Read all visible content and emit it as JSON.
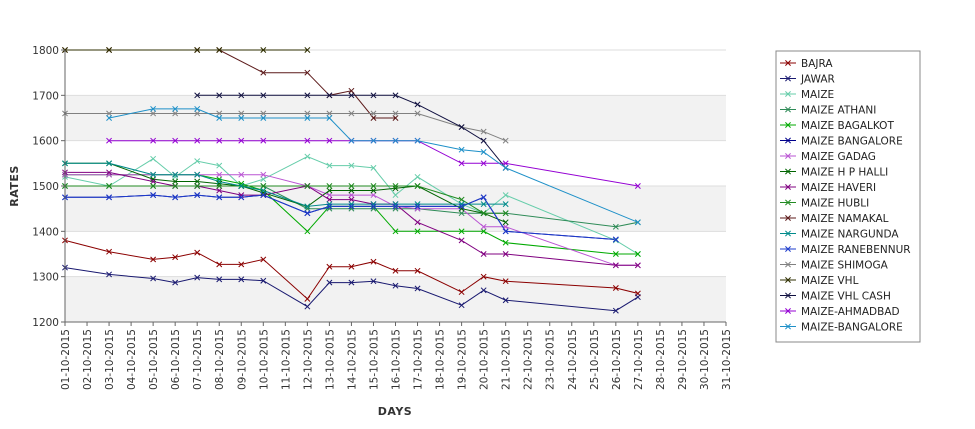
{
  "chart_data": {
    "type": "line",
    "title": "",
    "xlabel": "DAYS",
    "ylabel": "RATES",
    "ylim": [
      1200,
      1800
    ],
    "yticks": [
      1200,
      1300,
      1400,
      1500,
      1600,
      1700,
      1800
    ],
    "grid": true,
    "legend_position": "right",
    "categories": [
      "01-10-2015",
      "02-10-2015",
      "03-10-2015",
      "04-10-2015",
      "05-10-2015",
      "06-10-2015",
      "07-10-2015",
      "08-10-2015",
      "09-10-2015",
      "10-10-2015",
      "11-10-2015",
      "12-10-2015",
      "13-10-2015",
      "14-10-2015",
      "15-10-2015",
      "16-10-2015",
      "17-10-2015",
      "18-10-2015",
      "19-10-2015",
      "20-10-2015",
      "21-10-2015",
      "22-10-2015",
      "23-10-2015",
      "24-10-2015",
      "25-10-2015",
      "26-10-2015",
      "27-10-2015",
      "28-10-2015",
      "29-10-2015",
      "30-10-2015",
      "31-10-2015"
    ],
    "series": [
      {
        "name": "BAJRA",
        "color": "#8b0000",
        "values": [
          1380,
          null,
          1355,
          null,
          1338,
          1343,
          1353,
          1327,
          1327,
          1338,
          null,
          1251,
          1322,
          1322,
          1333,
          1313,
          1313,
          null,
          1266,
          1300,
          1290,
          null,
          null,
          null,
          null,
          1275,
          1263,
          null,
          null,
          null,
          null
        ]
      },
      {
        "name": "JAWAR",
        "color": "#191970",
        "values": [
          1320,
          null,
          1305,
          null,
          1296,
          1287,
          1298,
          1294,
          1294,
          1291,
          null,
          1234,
          1287,
          1287,
          1290,
          1280,
          1274,
          null,
          1237,
          1270,
          1248,
          null,
          null,
          null,
          null,
          1225,
          1255,
          null,
          null,
          null,
          null
        ]
      },
      {
        "name": "MAIZE",
        "color": "#66cdaa",
        "values": [
          1520,
          null,
          1500,
          null,
          1560,
          1520,
          1555,
          1545,
          1500,
          1515,
          null,
          1565,
          1545,
          1545,
          1540,
          1480,
          1520,
          null,
          1460,
          1440,
          1480,
          null,
          null,
          null,
          null,
          1380,
          1350,
          null,
          null,
          null,
          null
        ]
      },
      {
        "name": "MAIZE ATHANI",
        "color": "#2e8b57",
        "values": [
          1500,
          null,
          1500,
          null,
          1500,
          1500,
          1500,
          1500,
          1500,
          1500,
          null,
          1450,
          1450,
          1450,
          1450,
          1450,
          1450,
          null,
          1440,
          1440,
          1440,
          null,
          null,
          null,
          null,
          1410,
          1420,
          null,
          null,
          null,
          null
        ]
      },
      {
        "name": "MAIZE BAGALKOT",
        "color": "#00aa00",
        "values": [
          1525,
          null,
          1525,
          null,
          1525,
          1525,
          1525,
          1515,
          1505,
          1490,
          null,
          1400,
          1455,
          1455,
          1455,
          1400,
          1400,
          null,
          1400,
          1400,
          1375,
          null,
          null,
          null,
          null,
          1350,
          1350,
          null,
          null,
          null,
          null
        ]
      },
      {
        "name": "MAIZE BANGALORE",
        "color": "#00008b",
        "values": [
          1475,
          null,
          1475,
          null,
          1480,
          1475,
          1480,
          1475,
          1475,
          1480,
          null,
          1440,
          1455,
          1455,
          1455,
          1455,
          1455,
          null,
          1455,
          1475,
          1400,
          null,
          null,
          null,
          null,
          1382,
          null,
          null,
          null,
          null,
          null
        ]
      },
      {
        "name": "MAIZE GADAG",
        "color": "#ba55d3",
        "values": [
          1525,
          null,
          1525,
          null,
          1525,
          1525,
          1525,
          1525,
          1525,
          1525,
          null,
          1500,
          1480,
          1480,
          1480,
          1455,
          1450,
          null,
          1450,
          1410,
          1410,
          null,
          null,
          null,
          null,
          1325,
          1325,
          null,
          null,
          null,
          null
        ]
      },
      {
        "name": "MAIZE H P HALLI",
        "color": "#006400",
        "values": [
          1550,
          null,
          1550,
          null,
          1515,
          1510,
          1510,
          1505,
          1500,
          1485,
          null,
          1455,
          1490,
          1490,
          1490,
          1495,
          1500,
          null,
          1450,
          1440,
          1420,
          null,
          null,
          null,
          null,
          null,
          null,
          null,
          null,
          null,
          null
        ]
      },
      {
        "name": "MAIZE HAVERI",
        "color": "#800080",
        "values": [
          1530,
          null,
          1530,
          null,
          1510,
          1500,
          1500,
          1490,
          1480,
          1480,
          null,
          1500,
          1470,
          1470,
          1460,
          1460,
          1420,
          null,
          1380,
          1350,
          1350,
          null,
          null,
          null,
          null,
          1325,
          1325,
          null,
          null,
          null,
          null
        ]
      },
      {
        "name": "MAIZE HUBLI",
        "color": "#228b22",
        "values": [
          1500,
          null,
          1500,
          null,
          1500,
          1500,
          1500,
          1500,
          1500,
          1500,
          null,
          1500,
          1500,
          1500,
          1500,
          1500,
          1500,
          null,
          1470,
          1440,
          1440,
          null,
          null,
          null,
          null,
          null,
          null,
          null,
          null,
          null,
          null
        ]
      },
      {
        "name": "MAIZE NAMAKAL",
        "color": "#5c1a1a",
        "values": [
          1800,
          null,
          1800,
          null,
          null,
          null,
          1800,
          1800,
          null,
          1750,
          null,
          1750,
          1700,
          1710,
          1650,
          1650,
          null,
          null,
          null,
          null,
          null,
          null,
          null,
          null,
          null,
          null,
          null,
          null,
          null,
          null,
          null
        ]
      },
      {
        "name": "MAIZE NARGUNDA",
        "color": "#008b8b",
        "values": [
          1550,
          null,
          1550,
          null,
          1525,
          1525,
          1525,
          1510,
          1500,
          1490,
          null,
          1455,
          1460,
          1460,
          1460,
          1460,
          1460,
          null,
          1460,
          1460,
          1460,
          null,
          null,
          null,
          null,
          null,
          null,
          null,
          null,
          null,
          null
        ]
      },
      {
        "name": "MAIZE RANEBENNUR",
        "color": "#1e3ccc",
        "values": [
          1475,
          null,
          1475,
          null,
          1480,
          1475,
          1480,
          1475,
          1475,
          1480,
          null,
          1440,
          1455,
          1455,
          1455,
          1455,
          1455,
          null,
          1455,
          1475,
          1400,
          null,
          null,
          null,
          null,
          1382,
          null,
          null,
          null,
          null,
          null
        ]
      },
      {
        "name": "MAIZE SHIMOGA",
        "color": "#808080",
        "values": [
          1660,
          null,
          1660,
          null,
          1660,
          1660,
          1660,
          1660,
          1660,
          1660,
          null,
          1660,
          1660,
          1660,
          1660,
          1660,
          1660,
          null,
          1630,
          1620,
          1600,
          null,
          null,
          null,
          null,
          null,
          null,
          null,
          null,
          null,
          null
        ]
      },
      {
        "name": "MAIZE VHL",
        "color": "#2f2f00",
        "values": [
          1800,
          null,
          1800,
          null,
          null,
          null,
          1800,
          1800,
          null,
          1800,
          null,
          1800,
          null,
          null,
          null,
          null,
          null,
          null,
          null,
          null,
          null,
          null,
          null,
          null,
          null,
          null,
          null,
          null,
          null,
          null,
          null
        ]
      },
      {
        "name": "MAIZE VHL CASH",
        "color": "#101040",
        "values": [
          null,
          null,
          null,
          null,
          null,
          null,
          1700,
          1700,
          1700,
          1700,
          null,
          1700,
          1700,
          1700,
          1700,
          1700,
          1680,
          null,
          1630,
          1600,
          1540,
          null,
          null,
          null,
          null,
          null,
          null,
          null,
          null,
          null,
          null
        ]
      },
      {
        "name": "MAIZE-AHMADBAD",
        "color": "#9400d3",
        "values": [
          null,
          null,
          1600,
          null,
          1600,
          1600,
          1600,
          1600,
          1600,
          1600,
          null,
          1600,
          1600,
          1600,
          1600,
          1600,
          1600,
          null,
          1550,
          1550,
          1550,
          null,
          null,
          null,
          null,
          null,
          1500,
          null,
          null,
          null,
          null
        ]
      },
      {
        "name": "MAIZE-BANGALORE",
        "color": "#1e90c8",
        "values": [
          null,
          null,
          1650,
          null,
          1670,
          1670,
          1670,
          1650,
          1650,
          1650,
          null,
          1650,
          1650,
          1600,
          1600,
          1600,
          1600,
          null,
          1580,
          1575,
          1540,
          null,
          null,
          null,
          null,
          null,
          1420,
          null,
          null,
          null,
          null
        ]
      }
    ]
  }
}
